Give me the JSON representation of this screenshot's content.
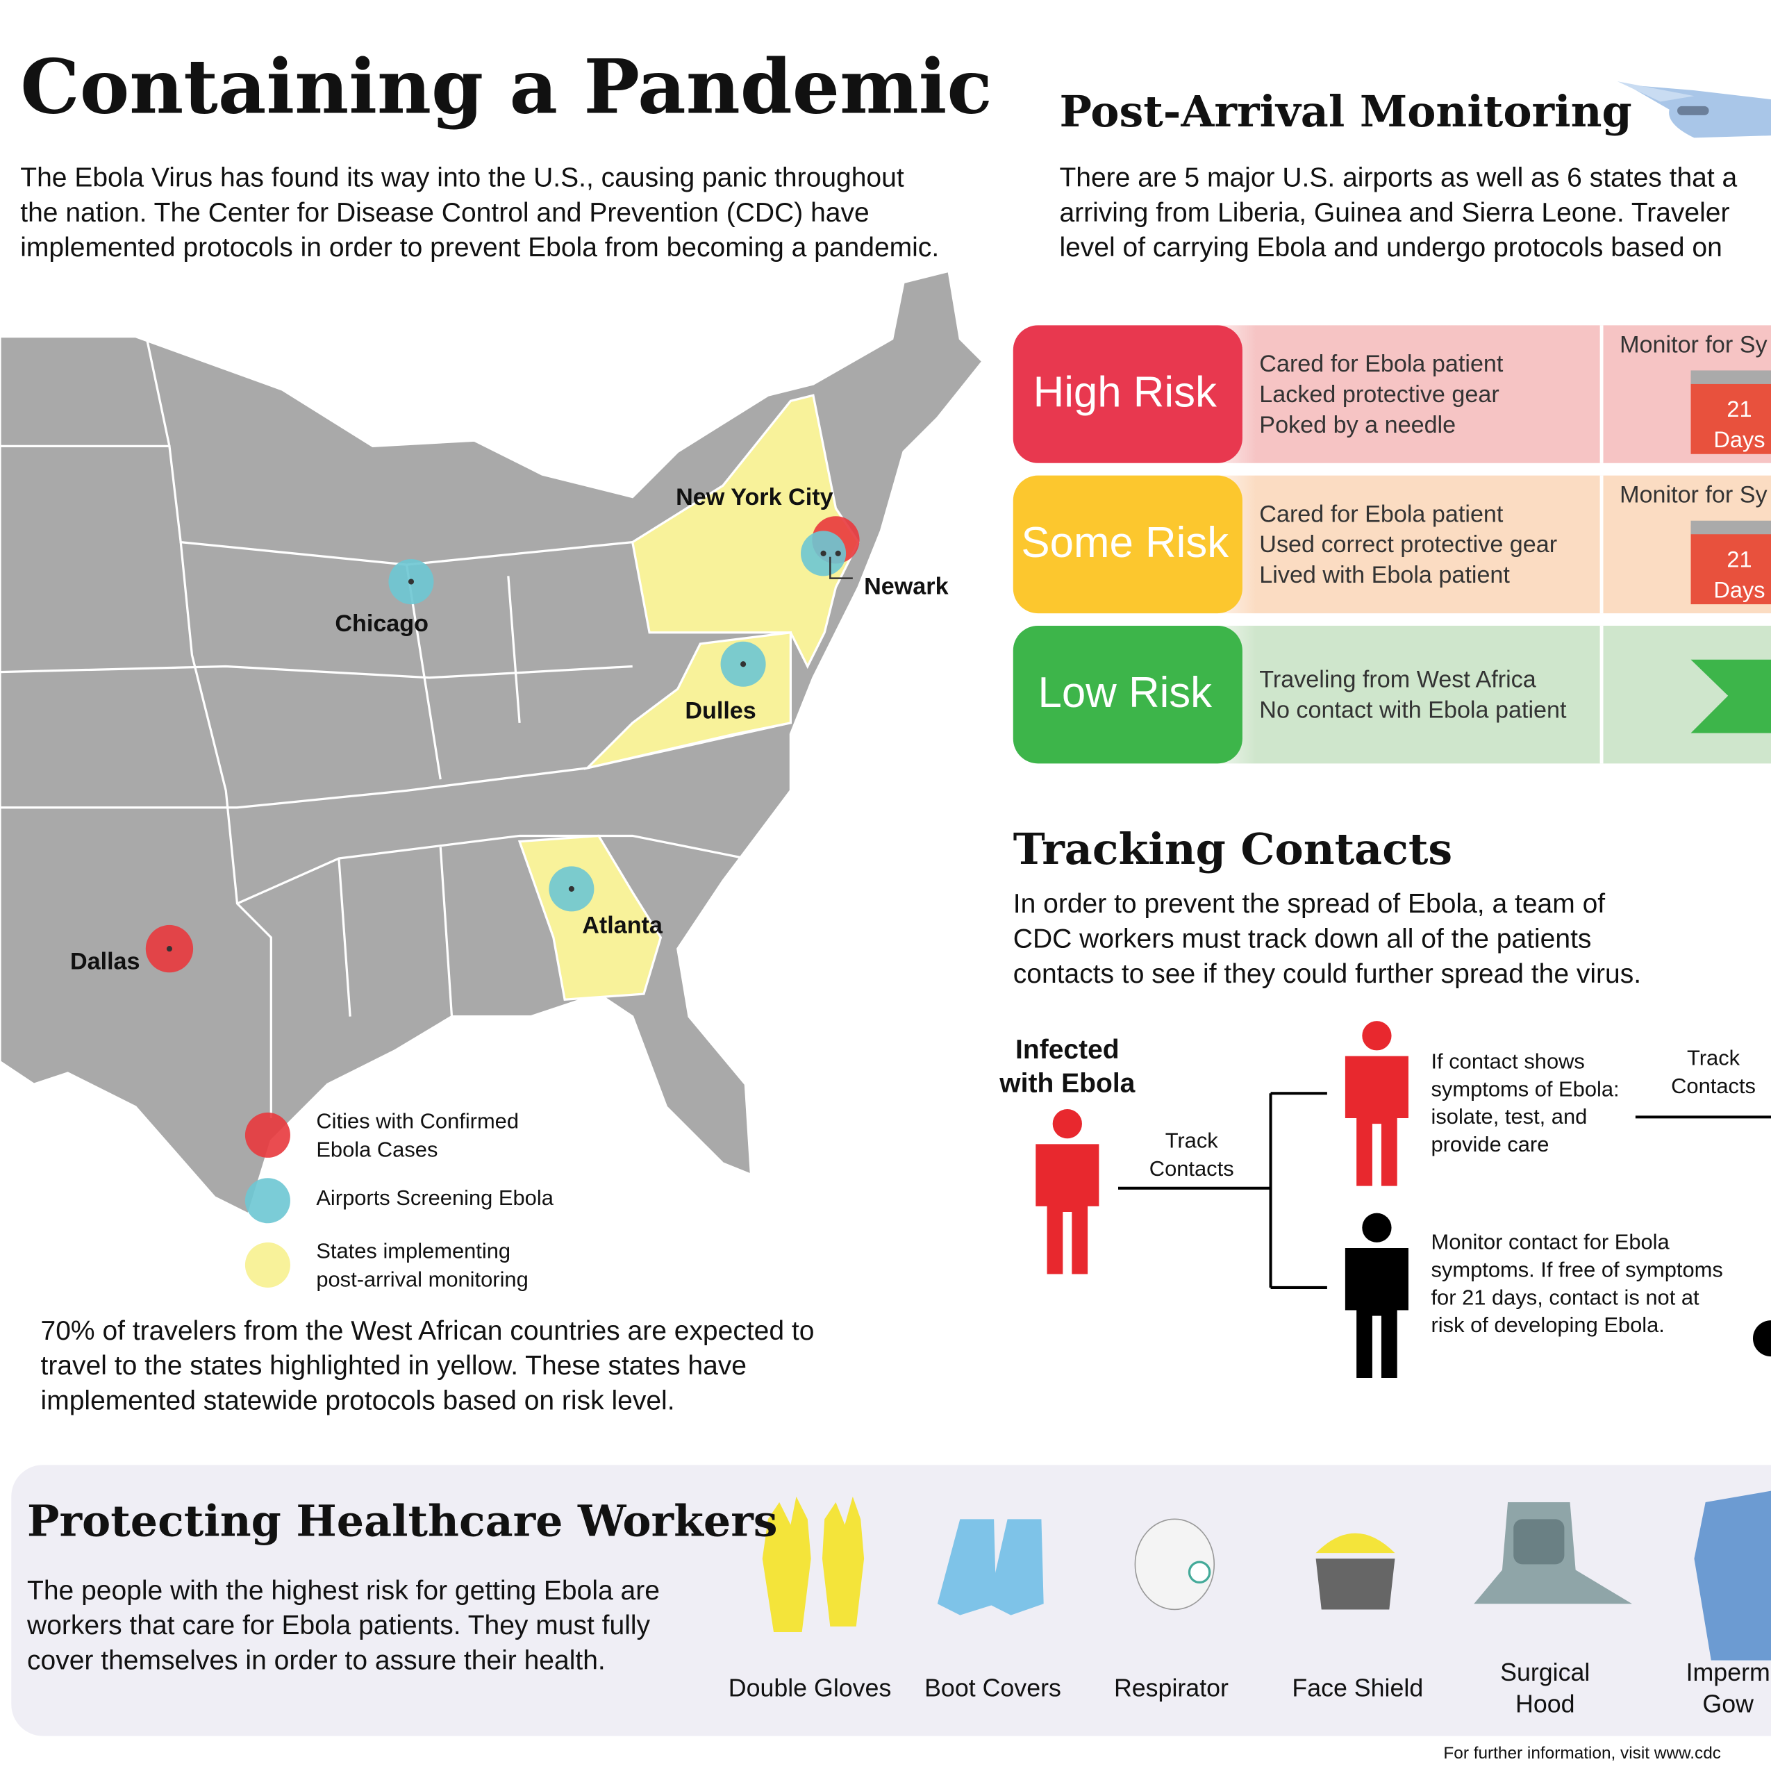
{
  "header": {
    "title": "Containing a Pandemic",
    "intro": [
      "The Ebola Virus has found its way into the U.S., causing panic throughout",
      "the nation. The Center for Disease Control and Prevention (CDC) have",
      "implemented protocols in order to prevent Ebola from becoming a pandemic."
    ]
  },
  "map": {
    "cities": [
      "New York City",
      "Newark",
      "Chicago",
      "Dulles",
      "Atlanta",
      "Dallas"
    ],
    "legend": [
      [
        "Cities with Confirmed",
        "Ebola Cases"
      ],
      [
        "Airports Screening Ebola"
      ],
      [
        "States implementing",
        "post-arrival monitoring"
      ]
    ],
    "note": [
      "70% of travelers from the West African countries are expected to",
      "travel to the states highlighted in yellow. These states have",
      "implemented statewide protocols based on risk level."
    ]
  },
  "monitoring": {
    "title": "Post-Arrival Monitoring",
    "intro": [
      "There are 5 major U.S. airports as well as 6 states that a",
      "arriving from Liberia, Guinea and Sierra Leone. Traveler",
      "level of carrying Ebola and undergo protocols based on"
    ],
    "risks": [
      {
        "level": "High Risk",
        "criteria": [
          "Cared for Ebola patient",
          "Lacked protective gear",
          "Poked by a needle"
        ],
        "action": "Monitor for Sy",
        "days": "21",
        "unit": "Days"
      },
      {
        "level": "Some Risk",
        "criteria": [
          "Cared for Ebola patient",
          "Used correct protective gear",
          "Lived with Ebola patient"
        ],
        "action": "Monitor for Sy",
        "days": "21",
        "unit": "Days"
      },
      {
        "level": "Low Risk",
        "criteria": [
          "Traveling from West Africa",
          "No contact with Ebola patient"
        ]
      }
    ]
  },
  "tracking": {
    "title": "Tracking Contacts",
    "intro": [
      "In order to prevent the spread of Ebola, a team of",
      "CDC workers must track down all of the patients",
      "contacts to see if they could further spread the virus."
    ],
    "infected": [
      "Infected",
      "with Ebola"
    ],
    "track": [
      "Track",
      "Contacts"
    ],
    "symptoms": [
      "If contact shows",
      "symptoms of Ebola:",
      "isolate, test, and",
      "provide care"
    ],
    "monitor": [
      "Monitor contact for Ebola",
      "symptoms. If free of symptoms",
      "for 21 days, contact is not at",
      "risk of developing Ebola."
    ],
    "track_next": [
      "Track",
      "Contacts"
    ]
  },
  "protection": {
    "title": "Protecting Healthcare Workers",
    "intro": [
      "The people with the highest risk for getting Ebola are",
      "workers that care for Ebola patients. They must fully",
      "cover themselves in order to assure their health."
    ],
    "items": [
      [
        "Double Gloves"
      ],
      [
        "Boot Covers"
      ],
      [
        "Respirator"
      ],
      [
        "Face Shield"
      ],
      [
        "Surgical",
        "Hood"
      ],
      [
        "Imperm",
        "Gow"
      ]
    ]
  },
  "footer": "For further information, visit www.cdc"
}
